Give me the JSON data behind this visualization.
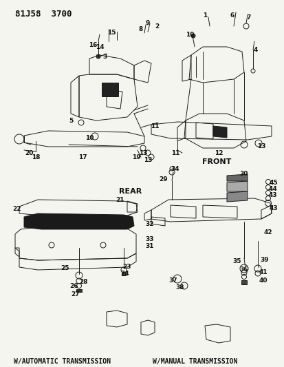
{
  "bg_color": "#f5f5f0",
  "text_color": "#111111",
  "fig_width": 4.14,
  "fig_height": 5.33,
  "dpi": 100,
  "title": "81J58  3700",
  "front_label": "FRONT",
  "rear_label": "REAR",
  "auto_trans": "W/AUTOMATIC TRANSMISSION",
  "manual_trans": "W/MANUAL TRANSMISSION",
  "lc": "#1a1a1a",
  "lw": 0.7
}
